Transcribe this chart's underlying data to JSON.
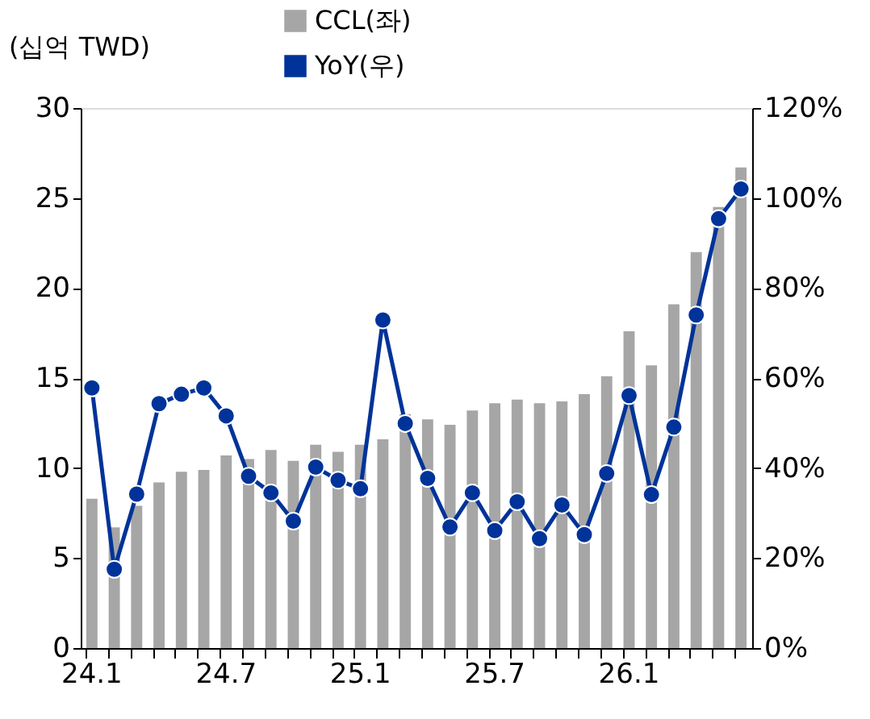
{
  "chart_data": {
    "type": "bar",
    "ylabel": "(십억 TWD)",
    "categories": [
      "24.1",
      null,
      null,
      null,
      null,
      null,
      "24.7",
      null,
      null,
      null,
      null,
      null,
      "25.1",
      null,
      null,
      null,
      null,
      null,
      "25.7",
      null,
      null,
      null,
      null,
      null,
      "26.1",
      null,
      null,
      null,
      null,
      null
    ],
    "series": [
      {
        "name": "CCL(좌)",
        "color": "#a6a6a6",
        "values": [
          8.3,
          6.7,
          7.9,
          9.2,
          9.8,
          9.9,
          10.7,
          10.5,
          11.0,
          10.4,
          11.3,
          10.9,
          11.3,
          11.6,
          13.0,
          12.7,
          12.4,
          13.2,
          13.6,
          13.8,
          13.6,
          13.7,
          14.1,
          15.1,
          17.6,
          15.7,
          19.1,
          22.0,
          24.5,
          26.7
        ]
      },
      {
        "name": "YoY(우)",
        "type": "line",
        "axis": "y2",
        "color": "#003399",
        "marker": "circle",
        "values": [
          57.8,
          17.5,
          34.2,
          54.3,
          56.4,
          57.8,
          51.6,
          38.2,
          34.5,
          28.2,
          40.2,
          37.3,
          35.4,
          72.9,
          49.9,
          37.7,
          26.9,
          34.5,
          26.1,
          32.5,
          24.3,
          31.8,
          25.2,
          38.8,
          56.1,
          34.1,
          49.1,
          74.0,
          95.4,
          102.0
        ]
      }
    ],
    "ylim": [
      0,
      30
    ],
    "yticks": [
      0,
      5,
      10,
      15,
      20,
      25,
      30
    ],
    "y2lim": [
      0,
      120
    ],
    "y2ticks": [
      {
        "value": 0,
        "label": "0%"
      },
      {
        "value": 20,
        "label": "20%"
      },
      {
        "value": 40,
        "label": "40%"
      },
      {
        "value": 60,
        "label": "60%"
      },
      {
        "value": 80,
        "label": "80%"
      },
      {
        "value": 100,
        "label": "100%"
      },
      {
        "value": 120,
        "label": "120%"
      }
    ],
    "grid": false,
    "legend": "top"
  }
}
